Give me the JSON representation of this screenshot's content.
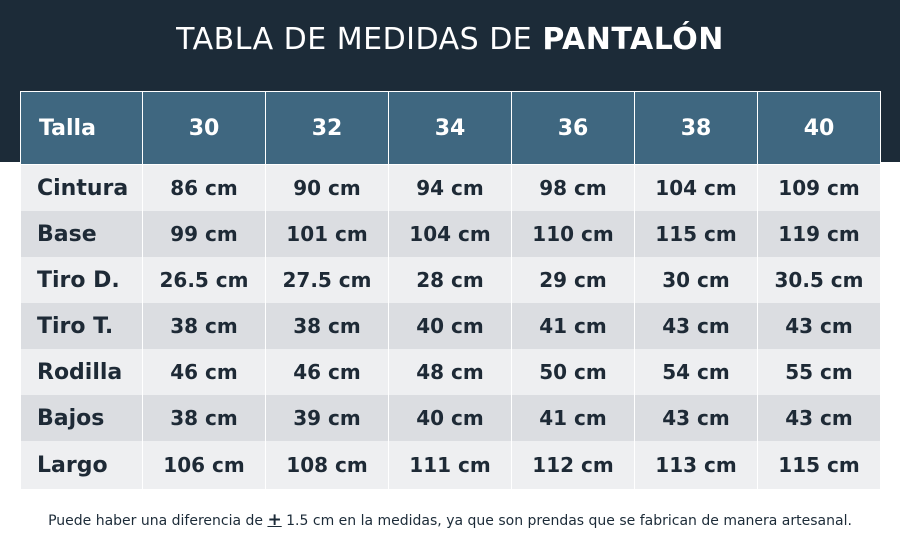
{
  "title": {
    "prefix": "TABLA DE MEDIDAS DE ",
    "emphasis": "PANTALÓN"
  },
  "table": {
    "header_label": "Talla",
    "sizes": [
      "30",
      "32",
      "34",
      "36",
      "38",
      "40"
    ],
    "rows": [
      {
        "label": "Cintura",
        "values": [
          "86 cm",
          "90 cm",
          "94 cm",
          "98 cm",
          "104 cm",
          "109 cm"
        ]
      },
      {
        "label": "Base",
        "values": [
          "99 cm",
          "101 cm",
          "104 cm",
          "110 cm",
          "115 cm",
          "119 cm"
        ]
      },
      {
        "label": "Tiro D.",
        "values": [
          "26.5 cm",
          "27.5 cm",
          "28 cm",
          "29 cm",
          "30 cm",
          "30.5 cm"
        ]
      },
      {
        "label": "Tiro T.",
        "values": [
          "38 cm",
          "38 cm",
          "40 cm",
          "41 cm",
          "43 cm",
          "43 cm"
        ]
      },
      {
        "label": "Rodilla",
        "values": [
          "46 cm",
          "46 cm",
          "48 cm",
          "50 cm",
          "54 cm",
          "55 cm"
        ]
      },
      {
        "label": "Bajos",
        "values": [
          "38 cm",
          "39 cm",
          "40 cm",
          "41 cm",
          "43 cm",
          "43 cm"
        ]
      },
      {
        "label": "Largo",
        "values": [
          "106 cm",
          "108 cm",
          "111 cm",
          "112 cm",
          "113 cm",
          "115 cm"
        ]
      }
    ]
  },
  "footnote": {
    "before": "Puede haber una diferencia de ",
    "symbol": "+",
    "after": " 1.5 cm en la medidas, ya que son prendas que se fabrican de manera artesanal."
  },
  "colors": {
    "band": "#1c2b38",
    "header": "#3f6780",
    "row_light": "#eeeff1",
    "row_dark": "#dbdde1",
    "text": "#1e2a36"
  }
}
